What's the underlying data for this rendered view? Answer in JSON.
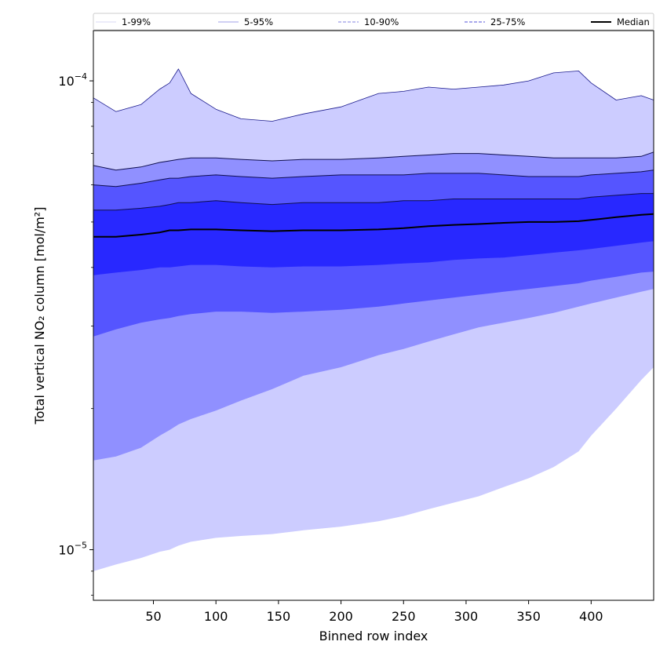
{
  "chart_data": {
    "type": "area",
    "title": "",
    "xlabel": "Binned row index",
    "ylabel": "Total vertical NO₂ column [mol/m²]",
    "yscale": "log",
    "xlim": [
      2,
      450
    ],
    "ylim": [
      7.8e-06,
      0.000128
    ],
    "xticks": [
      50,
      100,
      150,
      200,
      250,
      300,
      350,
      400
    ],
    "yticks": [
      {
        "value": 1e-05,
        "base": "10",
        "exp": "−5"
      },
      {
        "value": 0.0001,
        "base": "10",
        "exp": "−4"
      }
    ],
    "x": [
      2,
      20,
      40,
      55,
      63,
      70,
      80,
      100,
      120,
      145,
      170,
      200,
      230,
      250,
      270,
      290,
      310,
      330,
      350,
      370,
      390,
      400,
      420,
      440,
      450
    ],
    "series": [
      {
        "name": "p99",
        "values": [
          9.2e-05,
          8.6e-05,
          8.9e-05,
          9.6e-05,
          9.9e-05,
          0.000106,
          9.4e-05,
          8.7e-05,
          8.3e-05,
          8.2e-05,
          8.5e-05,
          8.8e-05,
          9.4e-05,
          9.5e-05,
          9.7e-05,
          9.6e-05,
          9.7e-05,
          9.8e-05,
          0.0001,
          0.000104,
          0.000105,
          9.9e-05,
          9.1e-05,
          9.3e-05,
          9.1e-05
        ]
      },
      {
        "name": "p95",
        "values": [
          6.6e-05,
          6.45e-05,
          6.55e-05,
          6.7e-05,
          6.75e-05,
          6.8e-05,
          6.85e-05,
          6.85e-05,
          6.8e-05,
          6.75e-05,
          6.8e-05,
          6.8e-05,
          6.85e-05,
          6.9e-05,
          6.95e-05,
          7e-05,
          7e-05,
          6.95e-05,
          6.9e-05,
          6.85e-05,
          6.85e-05,
          6.85e-05,
          6.85e-05,
          6.9e-05,
          7.05e-05
        ]
      },
      {
        "name": "p90",
        "values": [
          6e-05,
          5.95e-05,
          6.05e-05,
          6.15e-05,
          6.2e-05,
          6.2e-05,
          6.25e-05,
          6.3e-05,
          6.25e-05,
          6.2e-05,
          6.25e-05,
          6.3e-05,
          6.3e-05,
          6.3e-05,
          6.35e-05,
          6.35e-05,
          6.35e-05,
          6.3e-05,
          6.25e-05,
          6.25e-05,
          6.25e-05,
          6.3e-05,
          6.35e-05,
          6.4e-05,
          6.45e-05
        ]
      },
      {
        "name": "p75",
        "values": [
          5.3e-05,
          5.3e-05,
          5.35e-05,
          5.4e-05,
          5.45e-05,
          5.5e-05,
          5.5e-05,
          5.55e-05,
          5.5e-05,
          5.45e-05,
          5.5e-05,
          5.5e-05,
          5.5e-05,
          5.55e-05,
          5.55e-05,
          5.6e-05,
          5.6e-05,
          5.6e-05,
          5.6e-05,
          5.6e-05,
          5.6e-05,
          5.65e-05,
          5.7e-05,
          5.75e-05,
          5.75e-05
        ]
      },
      {
        "name": "Median",
        "values": [
          4.65e-05,
          4.65e-05,
          4.7e-05,
          4.75e-05,
          4.8e-05,
          4.8e-05,
          4.82e-05,
          4.82e-05,
          4.8e-05,
          4.78e-05,
          4.8e-05,
          4.8e-05,
          4.82e-05,
          4.85e-05,
          4.9e-05,
          4.93e-05,
          4.95e-05,
          4.98e-05,
          5e-05,
          5e-05,
          5.02e-05,
          5.05e-05,
          5.12e-05,
          5.18e-05,
          5.2e-05
        ]
      },
      {
        "name": "p25",
        "values": [
          3.85e-05,
          3.9e-05,
          3.95e-05,
          4e-05,
          4e-05,
          4.02e-05,
          4.05e-05,
          4.05e-05,
          4.02e-05,
          4e-05,
          4.02e-05,
          4.02e-05,
          4.05e-05,
          4.08e-05,
          4.1e-05,
          4.15e-05,
          4.18e-05,
          4.2e-05,
          4.25e-05,
          4.3e-05,
          4.35e-05,
          4.38e-05,
          4.45e-05,
          4.52e-05,
          4.55e-05
        ]
      },
      {
        "name": "p10",
        "values": [
          2.85e-05,
          2.95e-05,
          3.05e-05,
          3.1e-05,
          3.12e-05,
          3.15e-05,
          3.18e-05,
          3.22e-05,
          3.22e-05,
          3.2e-05,
          3.22e-05,
          3.25e-05,
          3.3e-05,
          3.35e-05,
          3.4e-05,
          3.45e-05,
          3.5e-05,
          3.55e-05,
          3.6e-05,
          3.65e-05,
          3.7e-05,
          3.75e-05,
          3.82e-05,
          3.9e-05,
          3.92e-05
        ]
      },
      {
        "name": "p5",
        "values": [
          1.55e-05,
          1.58e-05,
          1.65e-05,
          1.75e-05,
          1.8e-05,
          1.85e-05,
          1.9e-05,
          1.98e-05,
          2.08e-05,
          2.2e-05,
          2.35e-05,
          2.45e-05,
          2.6e-05,
          2.68e-05,
          2.78e-05,
          2.88e-05,
          2.98e-05,
          3.05e-05,
          3.12e-05,
          3.2e-05,
          3.3e-05,
          3.35e-05,
          3.45e-05,
          3.55e-05,
          3.6e-05
        ]
      },
      {
        "name": "p1",
        "values": [
          9e-06,
          9.3e-06,
          9.6e-06,
          9.9e-06,
          1e-05,
          1.02e-05,
          1.04e-05,
          1.06e-05,
          1.07e-05,
          1.08e-05,
          1.1e-05,
          1.12e-05,
          1.15e-05,
          1.18e-05,
          1.22e-05,
          1.26e-05,
          1.3e-05,
          1.36e-05,
          1.42e-05,
          1.5e-05,
          1.62e-05,
          1.75e-05,
          2e-05,
          2.3e-05,
          2.45e-05
        ]
      }
    ],
    "bands": [
      {
        "name": "1-99%",
        "lower": "p1",
        "upper": "p99",
        "color": "#ccccff"
      },
      {
        "name": "5-95%",
        "lower": "p5",
        "upper": "p95",
        "color": "#9090ff"
      },
      {
        "name": "10-90%",
        "lower": "p10",
        "upper": "p90",
        "color": "#5555ff"
      },
      {
        "name": "25-75%",
        "lower": "p25",
        "upper": "p75",
        "color": "#2828ff"
      }
    ],
    "legend": {
      "placement": "top",
      "entries": [
        {
          "label": "1-99%",
          "color": "#d8d8f5",
          "style": "solid"
        },
        {
          "label": "5-95%",
          "color": "#a0a0e8",
          "style": "solid"
        },
        {
          "label": "10-90%",
          "color": "#8080e0",
          "style": "dashed"
        },
        {
          "label": "25-75%",
          "color": "#5050d8",
          "style": "dashed"
        },
        {
          "label": "Median",
          "color": "#000000",
          "style": "solid"
        }
      ]
    }
  }
}
